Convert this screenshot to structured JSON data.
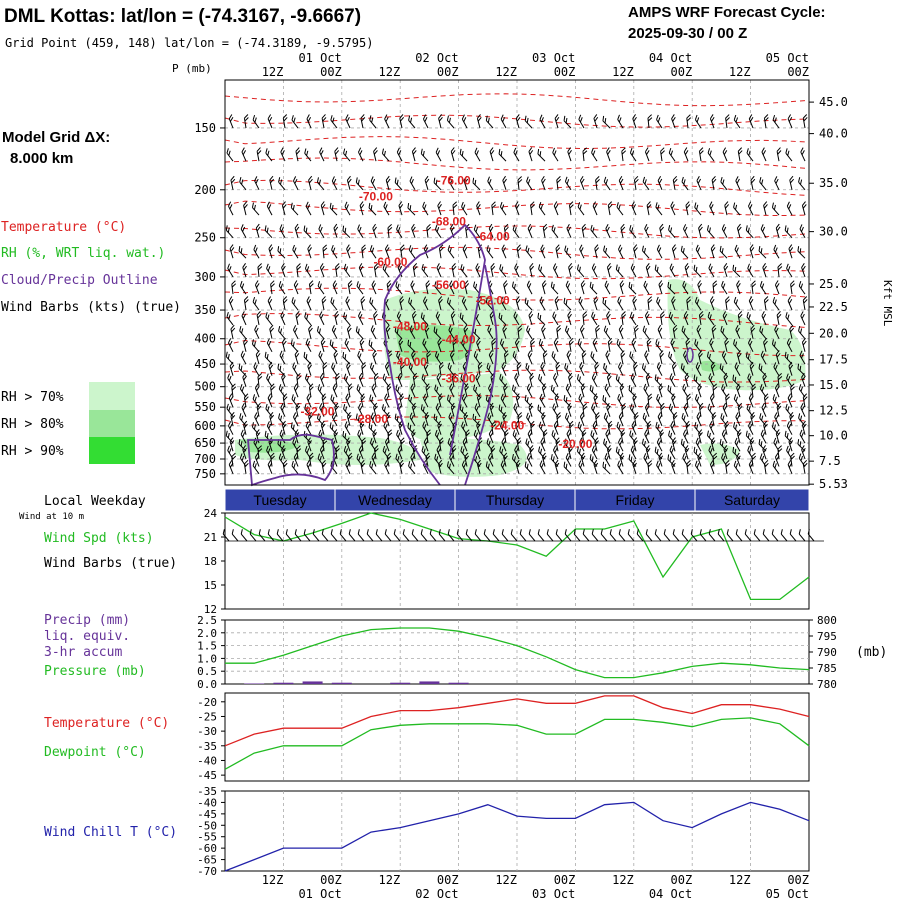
{
  "header": {
    "title": "DML Kottas:  lat/lon = (-74.3167, -9.6667)",
    "subtitle": "Grid Point (459, 148) lat/lon = (-74.3189, -9.5795)",
    "cycle_label": "AMPS WRF Forecast Cycle:",
    "cycle_value": "2025-09-30 / 00  Z"
  },
  "left_panel": {
    "model_grid_label": "Model Grid ΔX:",
    "model_grid_value": "8.000 km",
    "temp_legend": "Temperature (°C)",
    "rh_legend": "RH (%, WRT liq. wat.)",
    "cloud_legend": "Cloud/Precip Outline",
    "wind_legend": "Wind Barbs (kts) (true)",
    "rh_levels": [
      {
        "label": "RH > 70%",
        "color": "#ccf5cc"
      },
      {
        "label": "RH > 80%",
        "color": "#99e699"
      },
      {
        "label": "RH > 90%",
        "color": "#33dd33"
      }
    ]
  },
  "time_axis": {
    "top_hours": [
      "12Z",
      "00Z",
      "12Z",
      "00Z",
      "12Z",
      "00Z",
      "12Z",
      "00Z",
      "12Z",
      "00Z"
    ],
    "top_dates": [
      "01 Oct",
      "02 Oct",
      "03 Oct",
      "04 Oct",
      "05 Oct"
    ],
    "bottom_hours": [
      "12Z",
      "00Z",
      "12Z",
      "00Z",
      "12Z",
      "00Z",
      "12Z",
      "00Z",
      "12Z",
      "00Z"
    ],
    "bottom_dates": [
      "01 Oct",
      "02 Oct",
      "03 Oct",
      "04 Oct",
      "05 Oct"
    ],
    "p_unit": "P (mb)",
    "kft_label": "Kft MSL"
  },
  "weekday_bar": {
    "label": "Local Weekday",
    "days": [
      "Tuesday",
      "Wednesday",
      "Thursday",
      "Friday",
      "Saturday"
    ],
    "color": "#3344aa"
  },
  "wind_panel": {
    "subtitle": "Wind at 10 m",
    "speed_label": "Wind Spd (kts)",
    "barbs_label": "Wind Barbs (true)",
    "yticks": [
      "24",
      "21",
      "18",
      "15",
      "12"
    ]
  },
  "precip_panel": {
    "precip_label_1": "Precip (mm)",
    "precip_label_2": "liq. equiv.",
    "precip_label_3": "3-hr accum",
    "pressure_label": "Pressure (mb)",
    "right_unit": "(mb)",
    "left_ticks": [
      "2.5",
      "2.0",
      "1.5",
      "1.0",
      "0.5",
      "0.0"
    ],
    "right_ticks": [
      "800",
      "795",
      "790",
      "785",
      "780"
    ]
  },
  "temp_panel": {
    "temp_label": "Temperature (°C)",
    "dew_label": "Dewpoint (°C)",
    "yticks": [
      "-20",
      "-25",
      "-30",
      "-35",
      "-40",
      "-45"
    ]
  },
  "windchill_panel": {
    "label": "Wind Chill T (°C)",
    "yticks": [
      "-35",
      "-40",
      "-45",
      "-50",
      "-55",
      "-60",
      "-65",
      "-70"
    ]
  },
  "colors": {
    "temperature": "#dd2222",
    "dewpoint": "#22bb22",
    "windchill": "#2222aa",
    "cloud_outline": "#663399",
    "wind_speed": "#22bb22",
    "precip": "#663399"
  },
  "chart_data": [
    {
      "type": "heatmap",
      "title": "",
      "xlabel": "",
      "ylabel": "P (mb)",
      "xlim": [
        0,
        120
      ],
      "ylim": [
        790,
        120
      ],
      "y_ticks_left": [
        150,
        200,
        250,
        300,
        350,
        400,
        450,
        500,
        550,
        600,
        650,
        700,
        750
      ],
      "y_ticks_right": [
        "45.0",
        "40.0",
        "35.0",
        "30.0",
        "25.0",
        "22.5",
        "20.0",
        "17.5",
        "15.0",
        "12.5",
        "10.0",
        "7.5",
        "5.53"
      ],
      "y_ticks_right_at_p": [
        133,
        154,
        194,
        243,
        310,
        345,
        390,
        441,
        496,
        559,
        628,
        707,
        787
      ],
      "temperature_contour_labels": [
        {
          "text": "-76.00",
          "x": 47,
          "p": 195
        },
        {
          "text": "-70.00",
          "x": 31,
          "p": 210
        },
        {
          "text": "-68.00",
          "x": 46,
          "p": 236
        },
        {
          "text": "-64.00",
          "x": 55,
          "p": 253
        },
        {
          "text": "-60.00",
          "x": 34,
          "p": 285
        },
        {
          "text": "-56.00",
          "x": 46,
          "p": 317
        },
        {
          "text": "-52.00",
          "x": 55,
          "p": 341
        },
        {
          "text": "-48.00",
          "x": 38,
          "p": 385
        },
        {
          "text": "-44.00",
          "x": 48,
          "p": 409
        },
        {
          "text": "-40.00",
          "x": 38,
          "p": 454
        },
        {
          "text": "-36.00",
          "x": 48,
          "p": 490
        },
        {
          "text": "-32.00",
          "x": 19,
          "p": 572
        },
        {
          "text": "-28.00",
          "x": 30,
          "p": 592
        },
        {
          "text": "-24.00",
          "x": 58,
          "p": 610
        },
        {
          "text": "-20.00",
          "x": 72,
          "p": 665
        }
      ]
    },
    {
      "type": "line",
      "title": "",
      "ylabel": "Wind Spd (kts)",
      "ylim": [
        12,
        24
      ],
      "series": [
        {
          "name": "Wind Spd (kts)",
          "x": [
            0,
            6,
            12,
            18,
            24,
            30,
            36,
            42,
            48,
            54,
            60,
            66,
            72,
            78,
            84,
            90,
            96,
            102,
            108,
            114,
            120
          ],
          "values": [
            23.5,
            21.3,
            20.5,
            21.5,
            22.7,
            24,
            23.2,
            22,
            20.8,
            20.5,
            20,
            18.6,
            22,
            22,
            23,
            16,
            21,
            22,
            13.2,
            13.2,
            16
          ]
        }
      ]
    },
    {
      "type": "line",
      "title": "",
      "ylabel": "Pressure (mb)",
      "ylim": [
        780,
        800
      ],
      "series": [
        {
          "name": "Pressure (mb)",
          "x": [
            0,
            6,
            12,
            18,
            24,
            30,
            36,
            42,
            48,
            54,
            60,
            66,
            72,
            78,
            84,
            90,
            96,
            102,
            108,
            114,
            120
          ],
          "values": [
            786.5,
            786.5,
            789,
            792,
            795,
            797,
            797.5,
            797.5,
            796.5,
            794.5,
            792,
            788.5,
            784.5,
            782,
            782,
            783.5,
            785.5,
            786.5,
            786,
            785,
            784.5
          ]
        },
        {
          "name": "Precip (mm)",
          "x": [
            0,
            6,
            12,
            18,
            24,
            30,
            36,
            42,
            48,
            54,
            60,
            66,
            72,
            78,
            84,
            90,
            96,
            102,
            108,
            114,
            120
          ],
          "values": [
            0,
            0.02,
            0.05,
            0.1,
            0.05,
            0,
            0.05,
            0.1,
            0.05,
            0,
            0,
            0,
            0,
            0,
            0,
            0,
            0,
            0,
            0,
            0,
            0
          ]
        }
      ]
    },
    {
      "type": "line",
      "title": "",
      "ylim": [
        -45,
        -17
      ],
      "series": [
        {
          "name": "Temperature (°C)",
          "x": [
            0,
            6,
            12,
            18,
            24,
            30,
            36,
            42,
            48,
            54,
            60,
            66,
            72,
            78,
            84,
            90,
            96,
            102,
            108,
            114,
            120
          ],
          "values": [
            -35,
            -31,
            -29,
            -29,
            -29,
            -25,
            -23,
            -23,
            -22,
            -20.5,
            -19,
            -20.5,
            -20.5,
            -18,
            -18,
            -22,
            -24,
            -21,
            -21,
            -22.5,
            -25
          ]
        },
        {
          "name": "Dewpoint (°C)",
          "x": [
            0,
            6,
            12,
            18,
            24,
            30,
            36,
            42,
            48,
            54,
            60,
            66,
            72,
            78,
            84,
            90,
            96,
            102,
            108,
            114,
            120
          ],
          "values": [
            -43,
            -37.5,
            -35,
            -35,
            -35,
            -29.5,
            -28,
            -27.5,
            -27.5,
            -27.5,
            -28,
            -31,
            -31,
            -26,
            -26,
            -27,
            -28.5,
            -26,
            -25.5,
            -27.5,
            -35
          ]
        }
      ]
    },
    {
      "type": "line",
      "title": "",
      "ylim": [
        -70,
        -35
      ],
      "series": [
        {
          "name": "Wind Chill T (°C)",
          "x": [
            0,
            6,
            12,
            18,
            24,
            30,
            36,
            42,
            48,
            54,
            60,
            66,
            72,
            78,
            84,
            90,
            96,
            102,
            108,
            114,
            120
          ],
          "values": [
            -70,
            -65,
            -60,
            -60,
            -60,
            -53,
            -51,
            -48,
            -45,
            -41,
            -46,
            -47,
            -47,
            -41,
            -40,
            -48,
            -51,
            -45,
            -40,
            -43,
            -48
          ]
        }
      ]
    }
  ]
}
